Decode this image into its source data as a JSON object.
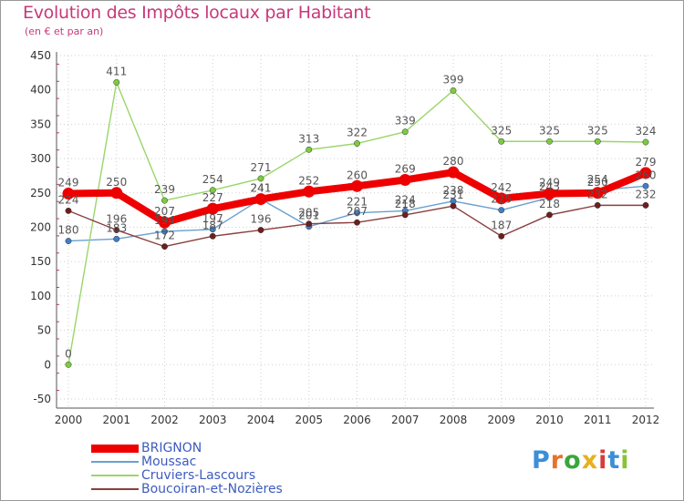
{
  "title": "Evolution des Impôts locaux par Habitant",
  "subtitle": "(en € et par an)",
  "logo": {
    "text": "Proxiti",
    "letters": [
      "P",
      "r",
      "o",
      "x",
      "i",
      "t",
      "i"
    ],
    "colors": [
      "#3b8fd6",
      "#e8732a",
      "#3aa63a",
      "#e8b020",
      "#d83a3a",
      "#3b8fd6",
      "#8ac23a"
    ]
  },
  "colors": {
    "title": "#c8387a",
    "grid": "#cfcfcf",
    "axis": "#555555",
    "tick_text": "#333333",
    "label_text": "#555555",
    "legend_text": "#3d5bbf"
  },
  "chart_data": {
    "type": "line",
    "title": "Evolution des Impôts locaux par Habitant",
    "ylabel": "(en € et par an)",
    "xlabel": "",
    "categories": [
      "2000",
      "2001",
      "2002",
      "2003",
      "2004",
      "2005",
      "2006",
      "2007",
      "2008",
      "2009",
      "2010",
      "2011",
      "2012"
    ],
    "ylim": [
      -50,
      450
    ],
    "yticks": [
      -50,
      0,
      50,
      100,
      150,
      200,
      250,
      300,
      350,
      400,
      450
    ],
    "ytick_labels": [
      "-50",
      "0",
      "50",
      "100",
      "150",
      "200",
      "250",
      "300",
      "350",
      "400",
      "450"
    ],
    "legend_position": "bottom-left",
    "series": [
      {
        "name": "BRIGNON",
        "color": "#ee0000",
        "dot": "#ee0000",
        "weight": "heavy",
        "values": [
          249,
          250,
          207,
          227,
          241,
          252,
          260,
          269,
          280,
          242,
          249,
          250,
          279
        ],
        "labels": [
          "249",
          "250",
          "207",
          "227",
          "241",
          "252",
          "260",
          "269",
          "280",
          "242",
          "249",
          "250",
          "279"
        ]
      },
      {
        "name": "Moussac",
        "color": "#6aa0cf",
        "dot": "#3f7fc4",
        "weight": "thin",
        "values": [
          180,
          183,
          194,
          197,
          241,
          201,
          221,
          224,
          238,
          225,
          243,
          254,
          260
        ],
        "labels": [
          "180",
          "183",
          "194",
          "197",
          "241",
          "201",
          "221",
          "224",
          "238",
          "225",
          "243",
          "254",
          "260"
        ]
      },
      {
        "name": "Cruviers-Lascours",
        "color": "#9ad66a",
        "dot": "#7ccc3e",
        "weight": "thin",
        "values": [
          0,
          411,
          239,
          254,
          271,
          313,
          322,
          339,
          399,
          325,
          325,
          325,
          324
        ],
        "labels": [
          "0",
          "411",
          "239",
          "254",
          "271",
          "313",
          "322",
          "339",
          "399",
          "325",
          "325",
          "325",
          "324"
        ]
      },
      {
        "name": "Boucoiran-et-Nozières",
        "color": "#8a3f3f",
        "dot": "#6e1e1e",
        "weight": "thin",
        "values": [
          224,
          196,
          172,
          187,
          196,
          205,
          207,
          218,
          231,
          187,
          218,
          232,
          232
        ],
        "labels": [
          "224",
          "196",
          "172",
          "187",
          "196",
          "205",
          "207",
          "218",
          "231",
          "187",
          "218",
          "232",
          "232"
        ]
      }
    ]
  }
}
